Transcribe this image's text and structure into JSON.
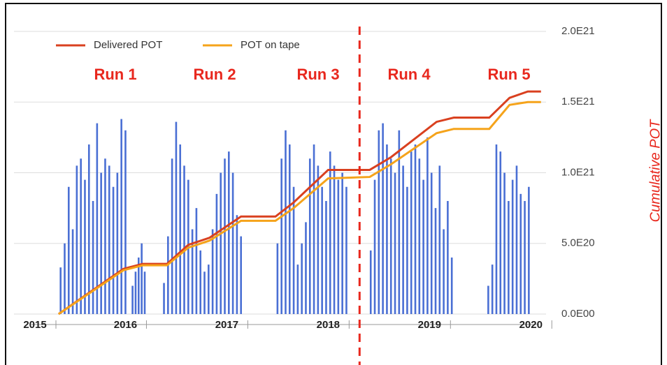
{
  "chart_data": {
    "type": "bar_line",
    "ylabel": "Cumulative POT",
    "xlim": [
      2014.9,
      2020.15
    ],
    "xticks": [
      2015,
      2016,
      2017,
      2018,
      2019,
      2020
    ],
    "ylim": [
      0,
      2e+21
    ],
    "yticks": [
      {
        "value": 0,
        "label": "0.0E00"
      },
      {
        "value": 5e+20,
        "label": "5.0E20"
      },
      {
        "value": 1e+21,
        "label": "1.0E21"
      },
      {
        "value": 1.5e+21,
        "label": "1.5E21"
      },
      {
        "value": 2e+21,
        "label": "2.0E21"
      }
    ],
    "grid": true,
    "legend": "upper left",
    "annotations": [
      "Run 1",
      "Run 2",
      "Run 3",
      "Run 4",
      "Run 5"
    ],
    "divider_x": 2018.31,
    "divider_color": "#e8281e",
    "bars": {
      "color": "#4a6fd4",
      "x": [
        2015.36,
        2015.4,
        2015.44,
        2015.48,
        2015.52,
        2015.56,
        2015.6,
        2015.64,
        2015.68,
        2015.72,
        2015.76,
        2015.8,
        2015.84,
        2015.88,
        2015.92,
        2015.96,
        2016.0,
        2016.07,
        2016.1,
        2016.13,
        2016.16,
        2016.19,
        2016.38,
        2016.42,
        2016.46,
        2016.5,
        2016.54,
        2016.58,
        2016.62,
        2016.66,
        2016.7,
        2016.74,
        2016.78,
        2016.82,
        2016.86,
        2016.9,
        2016.94,
        2016.98,
        2017.02,
        2017.06,
        2017.1,
        2017.14,
        2017.5,
        2017.54,
        2017.58,
        2017.62,
        2017.66,
        2017.7,
        2017.74,
        2017.78,
        2017.82,
        2017.86,
        2017.9,
        2017.94,
        2017.98,
        2018.02,
        2018.06,
        2018.1,
        2018.14,
        2018.18,
        2018.42,
        2018.46,
        2018.5,
        2018.54,
        2018.58,
        2018.62,
        2018.66,
        2018.7,
        2018.74,
        2018.78,
        2018.82,
        2018.86,
        2018.9,
        2018.94,
        2018.98,
        2019.02,
        2019.06,
        2019.1,
        2019.14,
        2019.18,
        2019.22,
        2019.58,
        2019.62,
        2019.66,
        2019.7,
        2019.74,
        2019.78,
        2019.82,
        2019.86,
        2019.9,
        2019.94,
        2019.98
      ],
      "values": [
        3.3e+20,
        5e+20,
        9e+20,
        6e+20,
        1.05e+21,
        1.1e+21,
        9.5e+20,
        1.2e+21,
        8e+20,
        1.35e+21,
        1e+21,
        1.1e+21,
        1.05e+21,
        9e+20,
        1e+21,
        1.38e+21,
        1.3e+21,
        2e+20,
        3e+20,
        4e+20,
        5e+20,
        3e+20,
        2.2e+20,
        5.5e+20,
        1.1e+21,
        1.36e+21,
        1.2e+21,
        1.05e+21,
        9.5e+20,
        6e+20,
        7.5e+20,
        4.5e+20,
        3e+20,
        3.5e+20,
        6e+20,
        8.5e+20,
        1e+21,
        1.1e+21,
        1.15e+21,
        1e+21,
        7e+20,
        5.5e+20,
        5e+20,
        1.1e+21,
        1.3e+21,
        1.2e+21,
        9e+20,
        3.5e+20,
        5e+20,
        6.5e+20,
        1.1e+21,
        1.2e+21,
        1.05e+21,
        9e+20,
        8e+20,
        1.15e+21,
        1.05e+21,
        9.5e+20,
        1e+21,
        9e+20,
        4.5e+20,
        9.5e+20,
        1.3e+21,
        1.35e+21,
        1.2e+21,
        1.1e+21,
        1e+21,
        1.3e+21,
        1.05e+21,
        9e+20,
        1.15e+21,
        1.2e+21,
        1.1e+21,
        9.5e+20,
        1.25e+21,
        1e+21,
        7.5e+20,
        1.05e+21,
        6e+20,
        8e+20,
        4e+20,
        2e+20,
        3.5e+20,
        1.2e+21,
        1.15e+21,
        1e+21,
        8e+20,
        9.5e+20,
        1.05e+21,
        8.5e+20,
        8e+20,
        9e+20
      ]
    },
    "x": [
      2015.34,
      2015.98,
      2016.17,
      2016.41,
      2016.62,
      2016.83,
      2017.14,
      2017.48,
      2017.66,
      2018.0,
      2018.41,
      2018.62,
      2019.07,
      2019.24,
      2019.59,
      2019.79,
      2019.97,
      2020.1
    ],
    "series": [
      {
        "name": "Delivered POT",
        "color": "#d9401f",
        "values": [
          0,
          3.2e+20,
          3.55e+20,
          3.55e+20,
          4.9e+20,
          5.4e+20,
          6.9e+20,
          6.9e+20,
          7.9e+20,
          1.02e+21,
          1.02e+21,
          1.11e+21,
          1.36e+21,
          1.39e+21,
          1.39e+21,
          1.53e+21,
          1.575e+21,
          1.575e+21
        ]
      },
      {
        "name": "POT on tape",
        "color": "#f5a31a",
        "values": [
          0,
          3.1e+20,
          3.45e+20,
          3.45e+20,
          4.7e+20,
          5.2e+20,
          6.6e+20,
          6.6e+20,
          7.5e+20,
          9.6e+20,
          9.7e+20,
          1.06e+21,
          1.28e+21,
          1.31e+21,
          1.31e+21,
          1.48e+21,
          1.5e+21,
          1.5e+21
        ]
      }
    ]
  }
}
